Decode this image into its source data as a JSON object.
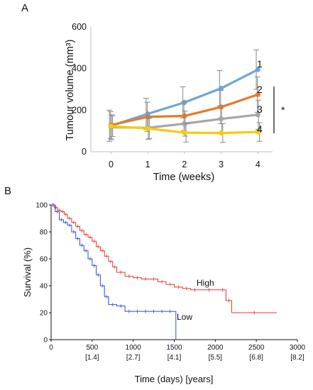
{
  "chart_data": [
    {
      "panel": "A",
      "type": "line",
      "xlabel": "Time (weeks)",
      "ylabel": "Tumour volume (mm³)",
      "x": [
        0,
        1,
        2,
        3,
        4
      ],
      "xlim": [
        -0.55,
        4.4
      ],
      "ylim": [
        0,
        600
      ],
      "yticks": [
        "0",
        "200",
        "400",
        "600"
      ],
      "xticks": [
        "0",
        "1",
        "2",
        "3",
        "4"
      ],
      "series": [
        {
          "name": "1",
          "color": "#6ea5d9",
          "values": [
            125,
            182,
            237,
            305,
            395
          ],
          "err": [
            75,
            75,
            75,
            85,
            95
          ]
        },
        {
          "name": "2",
          "color": "#e57b27",
          "values": [
            128,
            168,
            172,
            215,
            275
          ],
          "err": [
            65,
            70,
            70,
            80,
            85
          ]
        },
        {
          "name": "3",
          "color": "#a6a6a6",
          "values": [
            118,
            115,
            135,
            158,
            178
          ],
          "err": [
            60,
            55,
            60,
            65,
            70
          ]
        },
        {
          "name": "4",
          "color": "#f5cc10",
          "values": [
            123,
            112,
            92,
            90,
            95
          ],
          "err": [
            50,
            48,
            45,
            45,
            45
          ]
        }
      ],
      "significance": "*"
    },
    {
      "panel": "B",
      "type": "line",
      "xlabel": "Time (days) [years]",
      "ylabel": "Survival (%)",
      "xlim": [
        0,
        3000
      ],
      "ylim": [
        0,
        100
      ],
      "xticks": [
        "0",
        "500",
        "1000",
        "1500",
        "2000",
        "2500",
        "3000"
      ],
      "xticks_years": [
        "[1.4]",
        "[2.7]",
        "[4.1]",
        "[5.5]",
        "[6.8]",
        "[8.2]"
      ],
      "yticks": [
        "0",
        "20",
        "40",
        "60",
        "80",
        "100"
      ],
      "series": [
        {
          "name": "High",
          "color": "#e8362c",
          "x": [
            0,
            40,
            80,
            120,
            160,
            200,
            250,
            300,
            350,
            400,
            450,
            500,
            550,
            600,
            650,
            700,
            750,
            800,
            900,
            1000,
            1100,
            1200,
            1300,
            1400,
            1500,
            1600,
            1700,
            1800,
            2050,
            2130,
            2200,
            2750
          ],
          "y": [
            100,
            98,
            96,
            95,
            93,
            90,
            87,
            84,
            81,
            78,
            76,
            73,
            69,
            66,
            62,
            58,
            54,
            50,
            47,
            46,
            45,
            45,
            43,
            41,
            39,
            38,
            37,
            37,
            37,
            29,
            20,
            20
          ]
        },
        {
          "name": "Low",
          "color": "#2b4fd9",
          "x": [
            0,
            50,
            100,
            150,
            200,
            250,
            300,
            350,
            400,
            450,
            500,
            550,
            600,
            650,
            700,
            800,
            900,
            1000,
            1100,
            1200,
            1300,
            1400,
            1500,
            1520
          ],
          "y": [
            100,
            95,
            89,
            87,
            85,
            80,
            75,
            70,
            66,
            60,
            55,
            48,
            40,
            32,
            26,
            25,
            21,
            21,
            21,
            21,
            21,
            21,
            21,
            0
          ]
        }
      ]
    }
  ]
}
